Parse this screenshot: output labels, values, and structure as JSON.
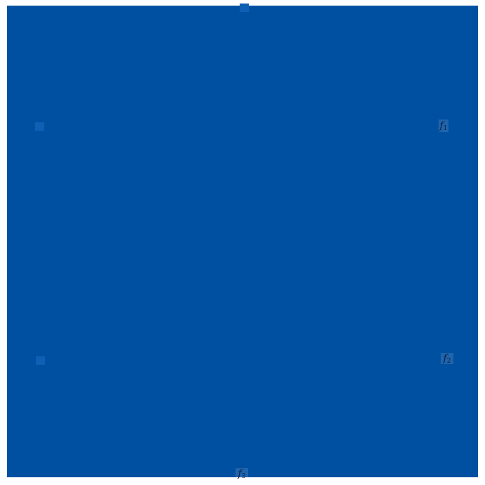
{
  "theme": {
    "page_bg": "#ffffff",
    "figure_blue": "#0050a2",
    "marker_blue": "#0e60b4",
    "label_badge": "rgba(255,255,255,0.12)",
    "label_text": "#131a38"
  },
  "figure": {
    "description": "solid blue filled square region"
  },
  "markers": [
    {
      "name": "marker-top-center"
    },
    {
      "name": "marker-left-upper"
    },
    {
      "name": "marker-left-lower"
    }
  ],
  "labels": {
    "items": [
      {
        "base": "f",
        "sub": "1"
      },
      {
        "base": "f",
        "sub": "2"
      },
      {
        "base": "f",
        "sub": "3"
      }
    ]
  }
}
